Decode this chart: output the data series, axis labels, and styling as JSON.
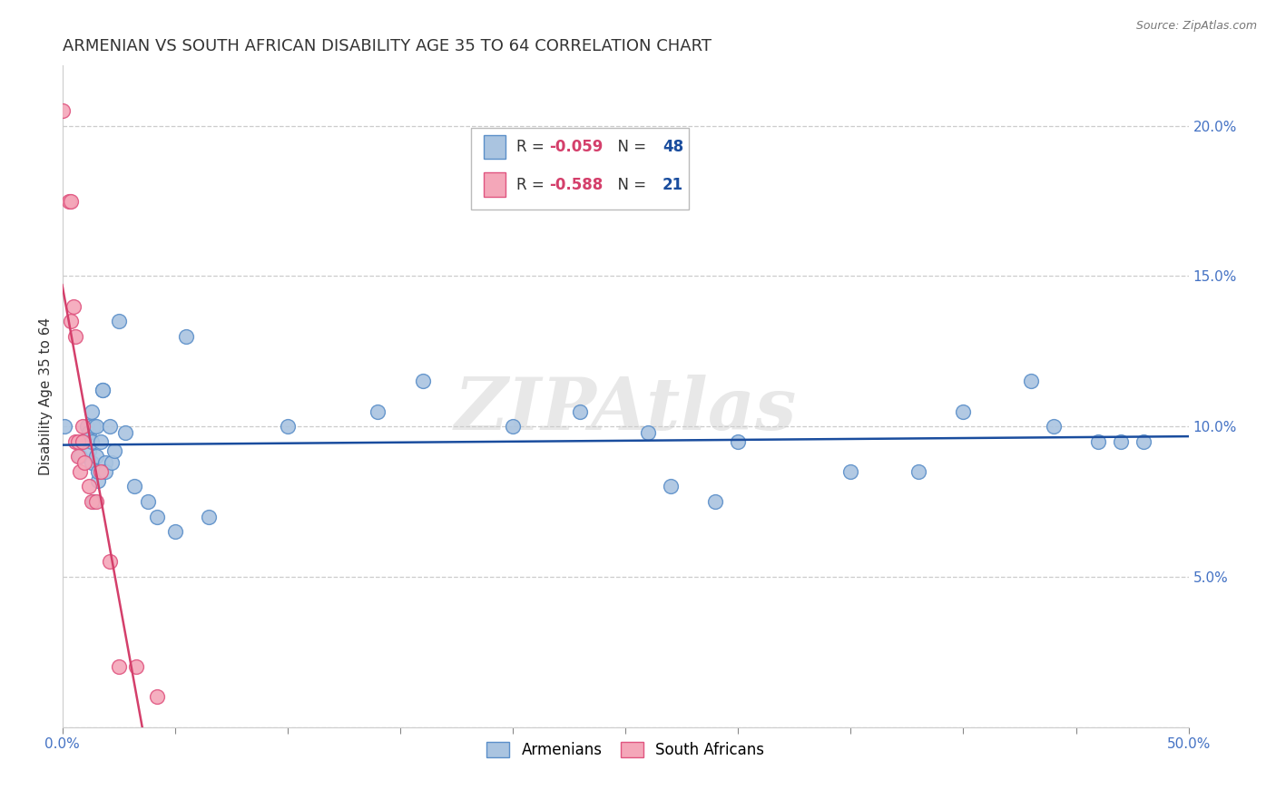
{
  "title": "ARMENIAN VS SOUTH AFRICAN DISABILITY AGE 35 TO 64 CORRELATION CHART",
  "source": "Source: ZipAtlas.com",
  "ylabel": "Disability Age 35 to 64",
  "xlim": [
    0.0,
    0.5
  ],
  "ylim": [
    0.0,
    0.22
  ],
  "xticks": [
    0.0,
    0.05,
    0.1,
    0.15,
    0.2,
    0.25,
    0.3,
    0.35,
    0.4,
    0.45,
    0.5
  ],
  "yticks": [
    0.0,
    0.05,
    0.1,
    0.15,
    0.2
  ],
  "armenian_x": [
    0.001,
    0.008,
    0.009,
    0.011,
    0.012,
    0.012,
    0.013,
    0.013,
    0.013,
    0.014,
    0.014,
    0.015,
    0.015,
    0.016,
    0.016,
    0.017,
    0.018,
    0.018,
    0.019,
    0.019,
    0.021,
    0.022,
    0.023,
    0.025,
    0.028,
    0.032,
    0.038,
    0.042,
    0.05,
    0.055,
    0.065,
    0.1,
    0.14,
    0.16,
    0.2,
    0.23,
    0.26,
    0.3,
    0.35,
    0.38,
    0.4,
    0.43,
    0.44,
    0.46,
    0.47,
    0.48,
    0.27,
    0.29
  ],
  "armenian_y": [
    0.1,
    0.09,
    0.095,
    0.1,
    0.098,
    0.092,
    0.088,
    0.105,
    0.095,
    0.1,
    0.075,
    0.1,
    0.09,
    0.082,
    0.085,
    0.095,
    0.112,
    0.112,
    0.088,
    0.085,
    0.1,
    0.088,
    0.092,
    0.135,
    0.098,
    0.08,
    0.075,
    0.07,
    0.065,
    0.13,
    0.07,
    0.1,
    0.105,
    0.115,
    0.1,
    0.105,
    0.098,
    0.095,
    0.085,
    0.085,
    0.105,
    0.115,
    0.1,
    0.095,
    0.095,
    0.095,
    0.08,
    0.075
  ],
  "southafrican_x": [
    0.0,
    0.003,
    0.004,
    0.004,
    0.005,
    0.006,
    0.006,
    0.007,
    0.007,
    0.008,
    0.009,
    0.009,
    0.01,
    0.012,
    0.013,
    0.015,
    0.017,
    0.021,
    0.025,
    0.033,
    0.042
  ],
  "southafrican_y": [
    0.205,
    0.175,
    0.175,
    0.135,
    0.14,
    0.13,
    0.095,
    0.095,
    0.09,
    0.085,
    0.1,
    0.095,
    0.088,
    0.08,
    0.075,
    0.075,
    0.085,
    0.055,
    0.02,
    0.02,
    0.01
  ],
  "armenian_color": "#aac4e0",
  "southafrican_color": "#f4a7b9",
  "armenian_edge_color": "#5b8fc9",
  "southafrican_edge_color": "#e05580",
  "trendline_armenian_color": "#1a4d9e",
  "trendline_southafrican_color": "#d43f6b",
  "R_armenian": -0.059,
  "N_armenian": 48,
  "R_southafrican": -0.588,
  "N_southafrican": 21,
  "legend_armenians": "Armenians",
  "legend_southafricans": "South Africans",
  "watermark": "ZIPAtlas",
  "background_color": "#ffffff",
  "grid_color": "#cccccc",
  "title_fontsize": 13,
  "label_fontsize": 11,
  "tick_color": "#4472c4",
  "tick_fontsize": 11,
  "marker_size": 130
}
